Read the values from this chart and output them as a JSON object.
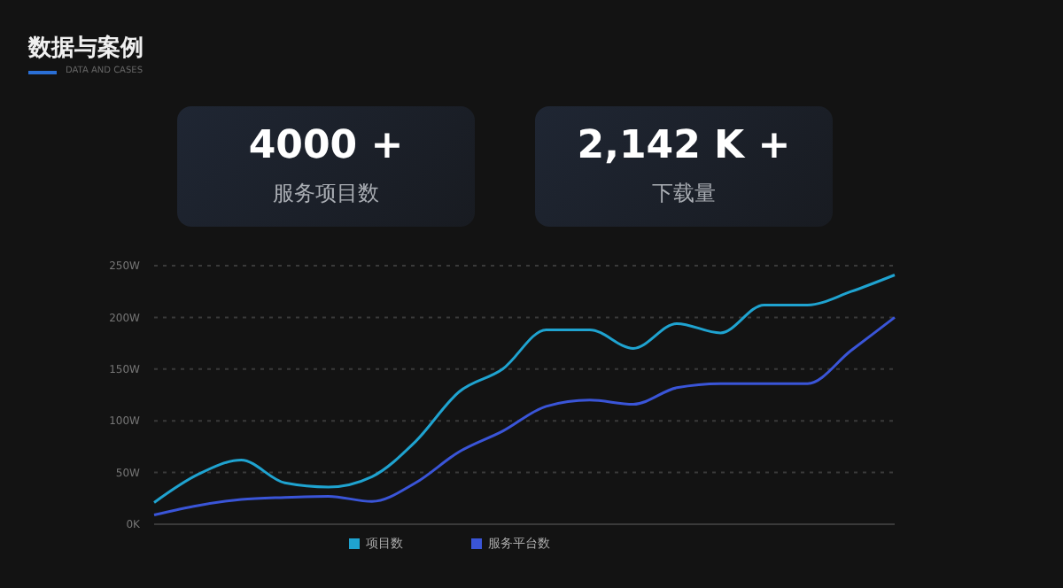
{
  "chart_data": {
    "type": "line",
    "title": "数据与案例",
    "subtitle": "DATA AND CASES",
    "annotations": [
      "4000 +",
      "服务项目数",
      "2,142 K +",
      "下载量"
    ],
    "categories": [
      null,
      null,
      null,
      null,
      null,
      null,
      null,
      null,
      null,
      null,
      null,
      null,
      null,
      null,
      null,
      null,
      null,
      null
    ],
    "series": [
      {
        "name": "项目数",
        "color": "#1fa3d0",
        "values": [
          21,
          48,
          62,
          40,
          36,
          46,
          80,
          128,
          150,
          188,
          188,
          170,
          194,
          185,
          212,
          212,
          225,
          241
        ]
      },
      {
        "name": "服务平台数",
        "color": "#3a55d8",
        "values": [
          9,
          18,
          24,
          26,
          27,
          22,
          40,
          70,
          90,
          114,
          120,
          116,
          132,
          136,
          136,
          136,
          168,
          200
        ]
      }
    ],
    "ylim": [
      0,
      250
    ],
    "yticks": [
      {
        "value": 0,
        "label": "0K"
      },
      {
        "value": 50,
        "label": "50W"
      },
      {
        "value": 100,
        "label": "100W"
      },
      {
        "value": 150,
        "label": "150W"
      },
      {
        "value": 200,
        "label": "200W"
      },
      {
        "value": 250,
        "label": "250W"
      }
    ],
    "grid": "y",
    "legend": "bottom",
    "marker": "none",
    "line_style": "solid"
  }
}
